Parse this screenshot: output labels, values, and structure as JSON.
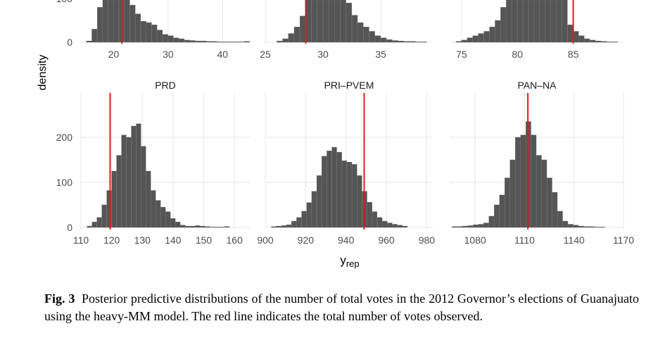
{
  "figure": {
    "x_title": "y",
    "x_title_sub": "rep",
    "y_title": "density",
    "caption_label": "Fig. 3",
    "caption_text": "Posterior predictive distributions of the number of total votes in the 2012 Governor’s elections of Guanajuato using the heavy-MM model. The red line indicates the total number of votes observed.",
    "colors": {
      "bar": "#555555",
      "observed_line": "#e31a1c",
      "grid": "#ebebeb"
    }
  },
  "chart_data": [
    {
      "type": "bar",
      "title": "",
      "row": "top",
      "xlim": [
        14,
        45
      ],
      "ylim": [
        0,
        110
      ],
      "x_ticks": [
        20,
        30,
        40
      ],
      "x_tick_labels": [
        "20",
        "30",
        "40"
      ],
      "y_ticks": [
        0,
        100
      ],
      "y_tick_labels": [
        "0",
        "100"
      ],
      "bin_start": 15,
      "bin_width": 1,
      "counts": [
        3,
        30,
        80,
        125,
        130,
        130,
        125,
        110,
        85,
        65,
        48,
        45,
        40,
        28,
        18,
        15,
        10,
        8,
        5,
        4,
        3,
        3,
        2,
        2,
        1,
        1,
        1,
        1,
        1,
        2
      ],
      "observed": 21.5
    },
    {
      "type": "bar",
      "title": "",
      "row": "top",
      "xlim": [
        25,
        39.5
      ],
      "ylim": [
        0,
        110
      ],
      "x_ticks": [
        25,
        30,
        35
      ],
      "x_tick_labels": [
        "25",
        "30",
        "35"
      ],
      "y_ticks": [
        0,
        100
      ],
      "y_tick_labels": [
        "",
        ""
      ],
      "bin_start": 26,
      "bin_width": 0.5,
      "counts": [
        3,
        8,
        20,
        35,
        60,
        100,
        130,
        135,
        135,
        130,
        125,
        110,
        90,
        62,
        45,
        35,
        25,
        15,
        10,
        6,
        4,
        3,
        2,
        2,
        1,
        1
      ],
      "observed": 28.5
    },
    {
      "type": "bar",
      "title": "",
      "row": "top",
      "xlim": [
        74,
        89.5
      ],
      "ylim": [
        0,
        110
      ],
      "x_ticks": [
        75,
        80,
        85
      ],
      "x_tick_labels": [
        "75",
        "80",
        "85"
      ],
      "y_ticks": [
        0,
        100
      ],
      "y_tick_labels": [
        "",
        ""
      ],
      "bin_start": 74.5,
      "bin_width": 0.5,
      "counts": [
        2,
        5,
        10,
        15,
        20,
        25,
        35,
        50,
        80,
        110,
        130,
        135,
        135,
        135,
        135,
        135,
        135,
        130,
        120,
        100,
        40,
        25,
        15,
        8,
        5,
        3,
        2,
        1,
        1
      ],
      "observed": 85
    },
    {
      "type": "bar",
      "title": "PRD",
      "row": "bottom",
      "xlim": [
        110,
        165
      ],
      "ylim": [
        0,
        290
      ],
      "x_ticks": [
        110,
        120,
        130,
        140,
        150,
        160
      ],
      "x_tick_labels": [
        "110",
        "120",
        "130",
        "140",
        "150",
        "160"
      ],
      "y_ticks": [
        0,
        100,
        200
      ],
      "y_tick_labels": [
        "0",
        "100",
        "200"
      ],
      "bin_start": 112,
      "bin_width": 1.6,
      "counts": [
        3,
        12,
        22,
        50,
        82,
        125,
        160,
        205,
        200,
        225,
        230,
        180,
        125,
        82,
        60,
        45,
        35,
        20,
        12,
        5,
        3,
        3,
        4,
        3,
        2,
        1,
        1,
        1,
        2
      ],
      "observed": 119.5
    },
    {
      "type": "bar",
      "title": "PRI–PVEM",
      "row": "bottom",
      "xlim": [
        900,
        983
      ],
      "ylim": [
        0,
        290
      ],
      "x_ticks": [
        900,
        920,
        940,
        960,
        980
      ],
      "x_tick_labels": [
        "900",
        "920",
        "940",
        "960",
        "980"
      ],
      "y_ticks": [
        0,
        100,
        200
      ],
      "y_tick_labels": [
        "",
        "",
        ""
      ],
      "bin_start": 903,
      "bin_width": 2.5,
      "counts": [
        2,
        3,
        4,
        6,
        14,
        22,
        36,
        55,
        80,
        115,
        158,
        170,
        178,
        167,
        148,
        145,
        140,
        115,
        80,
        56,
        35,
        22,
        14,
        10,
        7,
        5,
        3
      ],
      "observed": 949
    },
    {
      "type": "bar",
      "title": "PAN–NA",
      "row": "bottom",
      "xlim": [
        1065,
        1170
      ],
      "ylim": [
        0,
        290
      ],
      "x_ticks": [
        1080,
        1110,
        1140,
        1170
      ],
      "x_tick_labels": [
        "1080",
        "1110",
        "1140",
        "1170"
      ],
      "y_ticks": [
        0,
        100,
        200
      ],
      "y_tick_labels": [
        "",
        "",
        ""
      ],
      "bin_start": 1066,
      "bin_width": 3.2,
      "counts": [
        2,
        2,
        3,
        4,
        6,
        7,
        10,
        25,
        50,
        72,
        110,
        150,
        200,
        205,
        235,
        205,
        160,
        150,
        110,
        78,
        36,
        14,
        7,
        5,
        3,
        2,
        2,
        1,
        1
      ],
      "observed": 1112
    }
  ]
}
